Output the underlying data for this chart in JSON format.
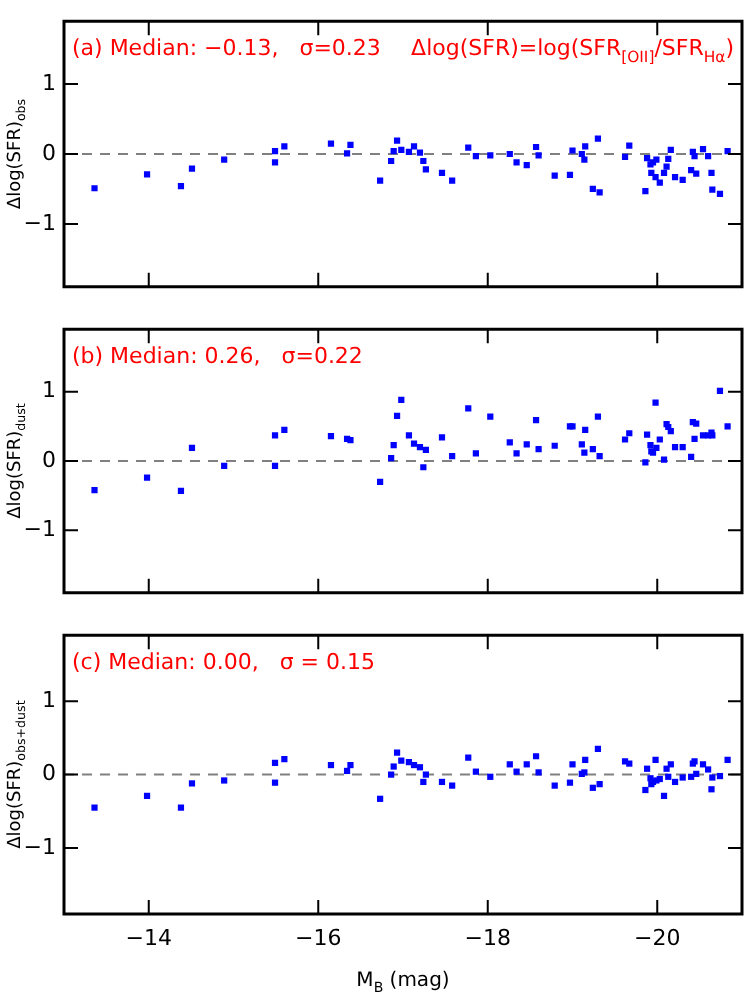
{
  "chart_data": [
    {
      "type": "scatter",
      "ylabel": "Δlog(SFR)$_{obs}$",
      "annotations": [
        "(a) Median: −0.13,   σ=0.23",
        "Δlog(SFR)=log(SFR$_{[OII]}$/SFR$_{Hα}$)"
      ],
      "xlim": [
        -13,
        -21
      ],
      "xticks": [
        -14,
        -16,
        -18,
        -20
      ],
      "ylim": [
        -1.9,
        1.9
      ],
      "yticks": [
        -1,
        0,
        1
      ],
      "tick_labels": "y",
      "marker": "square",
      "ref_lines": [
        {
          "axis": "y",
          "value": 0,
          "color": "#808080",
          "line_style": "dashed"
        }
      ],
      "series": [
        {
          "color": "#0000ff",
          "x": [
            -13.36,
            -13.98,
            -14.38,
            -14.51,
            -14.89,
            -15.49,
            -15.49,
            -15.6,
            -16.15,
            -16.34,
            -16.38,
            -16.73,
            -16.86,
            -16.89,
            -16.93,
            -16.98,
            -17.07,
            -17.13,
            -17.2,
            -17.24,
            -17.27,
            -17.46,
            -17.58,
            -17.77,
            -17.86,
            -18.03,
            -18.26,
            -18.34,
            -18.46,
            -18.57,
            -18.6,
            -18.79,
            -18.97,
            -19,
            -19.11,
            -19.14,
            -19.15,
            -19.24,
            -19.3,
            -19.32,
            -19.62,
            -19.67,
            -19.86,
            -19.88,
            -19.92,
            -19.93,
            -19.95,
            -19.98,
            -19.99,
            -20.03,
            -20.08,
            -20.11,
            -20.13,
            -20.16,
            -20.21,
            -20.3,
            -20.4,
            -20.42,
            -20.44,
            -20.46,
            -20.54,
            -20.6,
            -20.64,
            -20.65,
            -20.74,
            -20.83
          ],
          "values": [
            -0.49,
            -0.29,
            -0.46,
            -0.21,
            -0.08,
            0.04,
            -0.12,
            0.11,
            0.15,
            0.01,
            0.13,
            -0.38,
            -0.1,
            0.04,
            0.19,
            0.06,
            0.03,
            0.11,
            0.02,
            -0.1,
            -0.22,
            -0.27,
            -0.38,
            0.09,
            -0.03,
            -0.02,
            0,
            -0.12,
            -0.16,
            0.1,
            -0.02,
            -0.31,
            -0.3,
            0.05,
            0,
            -0.08,
            0.11,
            -0.5,
            0.22,
            -0.55,
            -0.04,
            0.12,
            -0.53,
            -0.06,
            -0.15,
            -0.27,
            -0.12,
            -0.33,
            -0.08,
            -0.41,
            -0.27,
            -0.18,
            -0.07,
            0.06,
            -0.33,
            -0.37,
            -0.23,
            0.03,
            -0.03,
            -0.28,
            0.07,
            -0.03,
            -0.27,
            -0.51,
            -0.57,
            0.04
          ]
        }
      ]
    },
    {
      "type": "scatter",
      "ylabel": "Δlog(SFR)$_{dust}$",
      "annotations": [
        "(b) Median: 0.26,   σ=0.22"
      ],
      "xlim": [
        -13,
        -21
      ],
      "xticks": [
        -14,
        -16,
        -18,
        -20
      ],
      "ylim": [
        -1.9,
        1.9
      ],
      "yticks": [
        -1,
        0,
        1
      ],
      "tick_labels": "y",
      "marker": "square",
      "ref_lines": [
        {
          "axis": "y",
          "value": 0,
          "color": "#808080",
          "line_style": "dashed"
        }
      ],
      "series": [
        {
          "color": "#0000ff",
          "x": [
            -13.36,
            -13.98,
            -14.38,
            -14.51,
            -14.89,
            -15.49,
            -15.49,
            -15.6,
            -16.15,
            -16.34,
            -16.38,
            -16.73,
            -16.86,
            -16.89,
            -16.93,
            -16.98,
            -17.07,
            -17.13,
            -17.2,
            -17.24,
            -17.27,
            -17.46,
            -17.58,
            -17.77,
            -17.86,
            -18.03,
            -18.26,
            -18.34,
            -18.46,
            -18.57,
            -18.6,
            -18.79,
            -18.97,
            -19,
            -19.11,
            -19.14,
            -19.15,
            -19.24,
            -19.3,
            -19.32,
            -19.62,
            -19.67,
            -19.86,
            -19.88,
            -19.92,
            -19.93,
            -19.95,
            -19.98,
            -19.99,
            -20.03,
            -20.08,
            -20.11,
            -20.13,
            -20.16,
            -20.21,
            -20.3,
            -20.4,
            -20.42,
            -20.44,
            -20.46,
            -20.54,
            -20.6,
            -20.64,
            -20.65,
            -20.74,
            -20.83
          ],
          "values": [
            -0.42,
            -0.24,
            -0.43,
            0.19,
            -0.07,
            0.37,
            -0.07,
            0.45,
            0.36,
            0.32,
            0.3,
            -0.3,
            0.04,
            0.23,
            0.65,
            0.88,
            0.37,
            0.25,
            0.2,
            -0.09,
            0.16,
            0.34,
            0.07,
            0.76,
            0.11,
            0.64,
            0.27,
            0.11,
            0.24,
            0.59,
            0.17,
            0.22,
            0.5,
            0.5,
            0.24,
            0.12,
            0.45,
            0.17,
            0.64,
            0.07,
            0.31,
            0.4,
            -0.02,
            0.38,
            0.23,
            0.14,
            0.12,
            0.84,
            0.19,
            0.31,
            0.02,
            0.53,
            0.49,
            0.43,
            0.2,
            0.2,
            0.06,
            0.56,
            0.32,
            0.54,
            0.37,
            0.37,
            0.41,
            0.37,
            1.01,
            0.5
          ]
        }
      ]
    },
    {
      "type": "scatter",
      "xlabel": "M$_{B}$ (mag)",
      "ylabel": "Δlog(SFR)$_{obs+dust}$",
      "annotations": [
        "(c) Median: 0.00,   σ = 0.15"
      ],
      "xlim": [
        -13,
        -21
      ],
      "xticks": [
        -14,
        -16,
        -18,
        -20
      ],
      "ylim": [
        -1.9,
        1.9
      ],
      "yticks": [
        -1,
        0,
        1
      ],
      "marker": "square",
      "ref_lines": [
        {
          "axis": "y",
          "value": 0,
          "color": "#808080",
          "line_style": "dashed"
        }
      ],
      "series": [
        {
          "color": "#0000ff",
          "x": [
            -13.36,
            -13.98,
            -14.38,
            -14.51,
            -14.89,
            -15.49,
            -15.49,
            -15.6,
            -16.15,
            -16.34,
            -16.38,
            -16.73,
            -16.86,
            -16.89,
            -16.93,
            -16.98,
            -17.07,
            -17.13,
            -17.2,
            -17.24,
            -17.27,
            -17.46,
            -17.58,
            -17.77,
            -17.86,
            -18.03,
            -18.26,
            -18.34,
            -18.46,
            -18.57,
            -18.6,
            -18.79,
            -18.97,
            -19,
            -19.11,
            -19.14,
            -19.15,
            -19.24,
            -19.3,
            -19.32,
            -19.62,
            -19.67,
            -19.86,
            -19.88,
            -19.92,
            -19.93,
            -19.95,
            -19.98,
            -19.99,
            -20.03,
            -20.08,
            -20.11,
            -20.13,
            -20.16,
            -20.21,
            -20.3,
            -20.4,
            -20.42,
            -20.44,
            -20.46,
            -20.54,
            -20.6,
            -20.64,
            -20.65,
            -20.74,
            -20.83
          ],
          "values": [
            -0.45,
            -0.29,
            -0.45,
            -0.12,
            -0.08,
            0.16,
            -0.11,
            0.21,
            0.13,
            0.05,
            0.13,
            -0.33,
            0,
            0.11,
            0.3,
            0.19,
            0.17,
            0.13,
            0.1,
            -0.1,
            0,
            -0.1,
            -0.15,
            0.23,
            0.04,
            -0.03,
            0.14,
            0.04,
            0.14,
            0.25,
            0.03,
            -0.15,
            -0.11,
            0.14,
            0.01,
            0.03,
            0.2,
            -0.18,
            0.35,
            -0.13,
            0.18,
            0.15,
            -0.21,
            0.08,
            -0.05,
            -0.13,
            -0.1,
            0.2,
            -0.08,
            -0.06,
            -0.29,
            0.08,
            -0.03,
            0.14,
            -0.1,
            -0.04,
            -0.03,
            0.15,
            0.18,
            0.01,
            0.14,
            0.07,
            -0.2,
            -0.04,
            -0.02,
            0.2
          ]
        }
      ]
    }
  ]
}
